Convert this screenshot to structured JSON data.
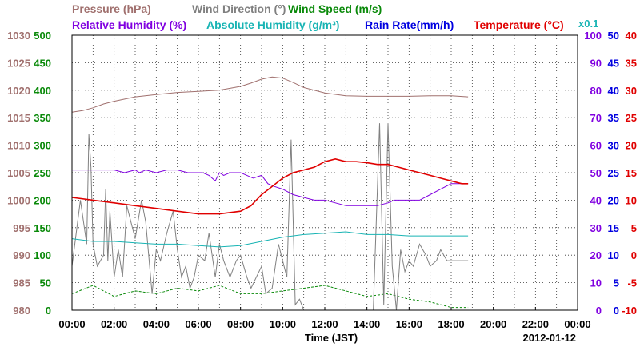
{
  "chart_data": {
    "type": "line",
    "date_label": "2012-01-12",
    "xlabel": "Time (JST)",
    "x_ticks": [
      "00:00",
      "02:00",
      "04:00",
      "06:00",
      "08:00",
      "10:00",
      "12:00",
      "14:00",
      "16:00",
      "18:00",
      "20:00",
      "22:00",
      "00:00"
    ],
    "x_range_hours": [
      0,
      24
    ],
    "scale_note": "x0.1",
    "legend": {
      "row1": [
        {
          "text": "Pressure (hPa)",
          "color": "#a0706e"
        },
        {
          "text": "Wind Direction (°)",
          "color": "#808080"
        },
        {
          "text": "Wind Speed (m/s)",
          "color": "#0a8a0a"
        }
      ],
      "row2": [
        {
          "text": "Relative Humidity (%)",
          "color": "#8000e0"
        },
        {
          "text": "Absolute Humidity (g/m³)",
          "color": "#18b4b4"
        },
        {
          "text": "Rain Rate(mm/h)",
          "color": "#0000e0"
        },
        {
          "text": "Temperature (°C)",
          "color": "#e00000"
        }
      ]
    },
    "axes": {
      "pressure": {
        "range": [
          980,
          1030
        ],
        "ticks": [
          "1030",
          "1025",
          "1020",
          "1015",
          "1010",
          "1005",
          "1000",
          "995",
          "990",
          "985",
          "980"
        ],
        "color": "#a0706e"
      },
      "wind_direction": {
        "range": [
          0,
          500
        ],
        "ticks": [
          "500",
          "450",
          "400",
          "350",
          "300",
          "250",
          "200",
          "150",
          "100",
          "50",
          "0"
        ],
        "color": "#808080"
      },
      "wind_speed": {
        "range": [
          0,
          500
        ],
        "ticks": [
          "500",
          "450",
          "400",
          "350",
          "300",
          "250",
          "200",
          "150",
          "100",
          "50",
          "0"
        ],
        "color": "#0a8a0a"
      },
      "humidity": {
        "range": [
          0,
          100
        ],
        "ticks": [
          "100",
          "90",
          "80",
          "70",
          "60",
          "50",
          "40",
          "30",
          "20",
          "10",
          "0"
        ],
        "color": "#8000e0"
      },
      "rain_rate": {
        "range": [
          0,
          50
        ],
        "ticks": [
          "50",
          "45",
          "40",
          "35",
          "30",
          "25",
          "20",
          "15",
          "10",
          "5",
          "0"
        ],
        "color": "#0000e0"
      },
      "temperature": {
        "range": [
          -10,
          40
        ],
        "ticks": [
          "40",
          "35",
          "30",
          "25",
          "20",
          "15",
          "10",
          "5",
          "0",
          "-5",
          "-10"
        ],
        "color": "#e00000"
      }
    },
    "series": [
      {
        "name": "Pressure (hPa)",
        "axis": "pressure",
        "color": "#a0706e",
        "x": [
          0,
          0.5,
          1,
          1.5,
          2,
          3,
          4,
          5,
          6,
          7,
          8,
          8.5,
          9,
          9.5,
          10,
          10.5,
          11,
          12,
          13,
          14,
          15,
          16,
          17,
          18,
          18.8
        ],
        "y": [
          1016,
          1016.3,
          1016.8,
          1017.5,
          1018,
          1018.8,
          1019.2,
          1019.6,
          1019.8,
          1020,
          1020.7,
          1021.3,
          1022,
          1022.4,
          1022.2,
          1021.4,
          1020.5,
          1019.5,
          1019,
          1018.9,
          1018.9,
          1018.9,
          1019,
          1019,
          1018.8
        ]
      },
      {
        "name": "Wind Direction (°)",
        "axis": "wind_direction",
        "color": "#808080",
        "x": [
          0,
          0.4,
          0.7,
          0.8,
          0.9,
          1.0,
          1.2,
          1.5,
          1.6,
          1.7,
          1.8,
          2.0,
          2.2,
          2.4,
          2.6,
          3,
          3.3,
          3.5,
          3.8,
          4,
          4.2,
          4.5,
          4.8,
          5,
          5.2,
          5.4,
          5.6,
          5.8,
          6,
          6.3,
          6.5,
          6.8,
          7,
          7.2,
          7.5,
          7.8,
          8,
          8.3,
          8.5,
          9,
          9.2,
          9.5,
          9.8,
          10,
          10.2,
          10.4,
          10.6,
          10.8,
          11,
          11.5,
          12,
          12.5,
          13,
          13.5,
          14,
          14.3,
          14.6,
          14.8,
          15,
          15.2,
          15.4,
          15.6,
          15.8,
          16,
          16.2,
          16.5,
          16.8,
          17,
          17.3,
          17.5,
          17.8,
          18,
          18.3,
          18.6,
          18.8
        ],
        "y": [
          80,
          200,
          120,
          320,
          260,
          120,
          80,
          100,
          220,
          90,
          180,
          60,
          110,
          60,
          190,
          130,
          200,
          160,
          30,
          110,
          90,
          140,
          180,
          110,
          60,
          80,
          40,
          60,
          100,
          90,
          140,
          60,
          120,
          90,
          60,
          90,
          100,
          60,
          40,
          80,
          30,
          40,
          120,
          90,
          60,
          310,
          10,
          20,
          0,
          0,
          0,
          0,
          0,
          0,
          0,
          0,
          340,
          10,
          340,
          80,
          0,
          110,
          70,
          90,
          80,
          120,
          100,
          80,
          90,
          110,
          90,
          90,
          90,
          90,
          90
        ]
      },
      {
        "name": "Wind Speed (m/s)",
        "axis": "wind_speed",
        "color": "#0a8a0a",
        "x": [
          0,
          1,
          2,
          3,
          4,
          5,
          6,
          7,
          8,
          9,
          10,
          11,
          12,
          13,
          14,
          15,
          16,
          17,
          18,
          18.8
        ],
        "y": [
          30,
          45,
          25,
          35,
          30,
          40,
          35,
          45,
          30,
          30,
          35,
          40,
          45,
          35,
          25,
          30,
          20,
          15,
          5,
          5
        ]
      },
      {
        "name": "Relative Humidity (%)",
        "axis": "humidity",
        "color": "#8000e0",
        "x": [
          0,
          0.5,
          1,
          1.5,
          2,
          2.5,
          3,
          3.2,
          3.5,
          4,
          4.5,
          5,
          5.5,
          5.8,
          6,
          6.2,
          6.5,
          6.8,
          7,
          7.2,
          7.5,
          8,
          8.3,
          8.6,
          9,
          9.3,
          9.6,
          10,
          10.5,
          11,
          11.5,
          12,
          12.5,
          13,
          13.5,
          14,
          14.5,
          15,
          15.3,
          15.6,
          16,
          16.5,
          17,
          17.5,
          18,
          18.5,
          18.8
        ],
        "y": [
          51,
          51,
          51,
          51,
          51,
          50,
          51,
          50,
          51,
          50,
          51,
          51,
          50,
          50,
          50,
          50,
          49,
          47,
          50,
          49,
          50,
          50,
          49,
          48,
          49,
          46,
          45,
          44,
          42,
          41,
          40,
          40,
          39,
          38,
          38,
          38,
          38,
          39,
          40,
          40,
          40,
          40,
          42,
          44,
          46,
          46,
          46
        ]
      },
      {
        "name": "Absolute Humidity (g/m³)",
        "axis": "humidity",
        "color": "#18b4b4",
        "x": [
          0,
          1,
          2,
          3,
          4,
          5,
          6,
          7,
          8,
          9,
          10,
          11,
          12,
          13,
          14,
          15,
          16,
          17,
          18,
          18.8
        ],
        "y": [
          26,
          25,
          25,
          24.5,
          24,
          24,
          23.5,
          23,
          23.5,
          25,
          26.5,
          27.5,
          28,
          28.5,
          27.5,
          27.5,
          27,
          27,
          27,
          27
        ]
      },
      {
        "name": "Rain Rate(mm/h)",
        "axis": "rain_rate",
        "color": "#0000e0",
        "x": [
          0,
          18.8
        ],
        "y": [
          0,
          0
        ]
      },
      {
        "name": "Temperature (°C)",
        "axis": "temperature",
        "color": "#e00000",
        "x": [
          0,
          1,
          2,
          3,
          4,
          5,
          6,
          7,
          8,
          8.5,
          9,
          9.5,
          10,
          10.5,
          11,
          11.5,
          12,
          12.5,
          13,
          13.5,
          14,
          14.5,
          15,
          15.5,
          16,
          16.5,
          17,
          17.5,
          18,
          18.5,
          18.8
        ],
        "y": [
          10.5,
          10,
          9.5,
          9,
          8.5,
          8,
          7.5,
          7.5,
          8,
          9,
          11,
          12.5,
          14,
          15,
          15.5,
          16,
          17,
          17.5,
          17,
          17,
          16.8,
          16.5,
          16.5,
          16,
          15.5,
          15,
          14.5,
          14,
          13.5,
          13,
          13
        ]
      }
    ]
  }
}
